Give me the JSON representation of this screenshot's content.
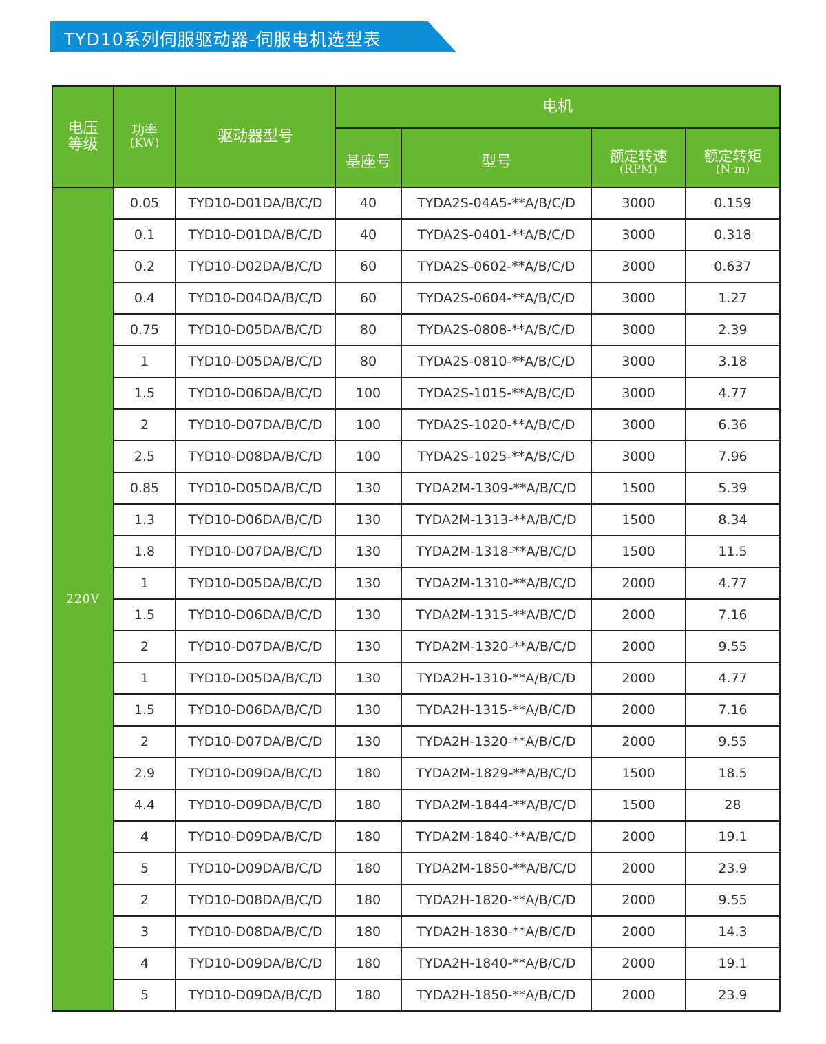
{
  "title": "TYD10系列伺服驱动器-伺服电机选型表",
  "colors": {
    "banner": "#0a8fd8",
    "header": "#66b82e"
  },
  "headers": {
    "voltage": "电压\n等级",
    "power": "功率",
    "power_unit": "(KW)",
    "driver": "驱动器型号",
    "motor": "电机",
    "frame": "基座号",
    "model": "型号",
    "speed": "额定转速",
    "speed_unit": "(RPM)",
    "torque": "额定转矩",
    "torque_unit": "(N·m)"
  },
  "voltage": "220V",
  "rows": [
    [
      "0.05",
      "TYD10-D01DA/B/C/D",
      "40",
      "TYDA2S-04A5-**A/B/C/D",
      "3000",
      "0.159"
    ],
    [
      "0.1",
      "TYD10-D01DA/B/C/D",
      "40",
      "TYDA2S-0401-**A/B/C/D",
      "3000",
      "0.318"
    ],
    [
      "0.2",
      "TYD10-D02DA/B/C/D",
      "60",
      "TYDA2S-0602-**A/B/C/D",
      "3000",
      "0.637"
    ],
    [
      "0.4",
      "TYD10-D04DA/B/C/D",
      "60",
      "TYDA2S-0604-**A/B/C/D",
      "3000",
      "1.27"
    ],
    [
      "0.75",
      "TYD10-D05DA/B/C/D",
      "80",
      "TYDA2S-0808-**A/B/C/D",
      "3000",
      "2.39"
    ],
    [
      "1",
      "TYD10-D05DA/B/C/D",
      "80",
      "TYDA2S-0810-**A/B/C/D",
      "3000",
      "3.18"
    ],
    [
      "1.5",
      "TYD10-D06DA/B/C/D",
      "100",
      "TYDA2S-1015-**A/B/C/D",
      "3000",
      "4.77"
    ],
    [
      "2",
      "TYD10-D07DA/B/C/D",
      "100",
      "TYDA2S-1020-**A/B/C/D",
      "3000",
      "6.36"
    ],
    [
      "2.5",
      "TYD10-D08DA/B/C/D",
      "100",
      "TYDA2S-1025-**A/B/C/D",
      "3000",
      "7.96"
    ],
    [
      "0.85",
      "TYD10-D05DA/B/C/D",
      "130",
      "TYDA2M-1309-**A/B/C/D",
      "1500",
      "5.39"
    ],
    [
      "1.3",
      "TYD10-D06DA/B/C/D",
      "130",
      "TYDA2M-1313-**A/B/C/D",
      "1500",
      "8.34"
    ],
    [
      "1.8",
      "TYD10-D07DA/B/C/D",
      "130",
      "TYDA2M-1318-**A/B/C/D",
      "1500",
      "11.5"
    ],
    [
      "1",
      "TYD10-D05DA/B/C/D",
      "130",
      "TYDA2M-1310-**A/B/C/D",
      "2000",
      "4.77"
    ],
    [
      "1.5",
      "TYD10-D06DA/B/C/D",
      "130",
      "TYDA2M-1315-**A/B/C/D",
      "2000",
      "7.16"
    ],
    [
      "2",
      "TYD10-D07DA/B/C/D",
      "130",
      "TYDA2M-1320-**A/B/C/D",
      "2000",
      "9.55"
    ],
    [
      "1",
      "TYD10-D05DA/B/C/D",
      "130",
      "TYDA2H-1310-**A/B/C/D",
      "2000",
      "4.77"
    ],
    [
      "1.5",
      "TYD10-D06DA/B/C/D",
      "130",
      "TYDA2H-1315-**A/B/C/D",
      "2000",
      "7.16"
    ],
    [
      "2",
      "TYD10-D07DA/B/C/D",
      "130",
      "TYDA2H-1320-**A/B/C/D",
      "2000",
      "9.55"
    ],
    [
      "2.9",
      "TYD10-D09DA/B/C/D",
      "180",
      "TYDA2M-1829-**A/B/C/D",
      "1500",
      "18.5"
    ],
    [
      "4.4",
      "TYD10-D09DA/B/C/D",
      "180",
      "TYDA2M-1844-**A/B/C/D",
      "1500",
      "28"
    ],
    [
      "4",
      "TYD10-D09DA/B/C/D",
      "180",
      "TYDA2M-1840-**A/B/C/D",
      "2000",
      "19.1"
    ],
    [
      "5",
      "TYD10-D09DA/B/C/D",
      "180",
      "TYDA2M-1850-**A/B/C/D",
      "2000",
      "23.9"
    ],
    [
      "2",
      "TYD10-D08DA/B/C/D",
      "180",
      "TYDA2H-1820-**A/B/C/D",
      "2000",
      "9.55"
    ],
    [
      "3",
      "TYD10-D08DA/B/C/D",
      "180",
      "TYDA2H-1830-**A/B/C/D",
      "2000",
      "14.3"
    ],
    [
      "4",
      "TYD10-D09DA/B/C/D",
      "180",
      "TYDA2H-1840-**A/B/C/D",
      "2000",
      "19.1"
    ],
    [
      "5",
      "TYD10-D09DA/B/C/D",
      "180",
      "TYDA2H-1850-**A/B/C/D",
      "2000",
      "23.9"
    ]
  ]
}
